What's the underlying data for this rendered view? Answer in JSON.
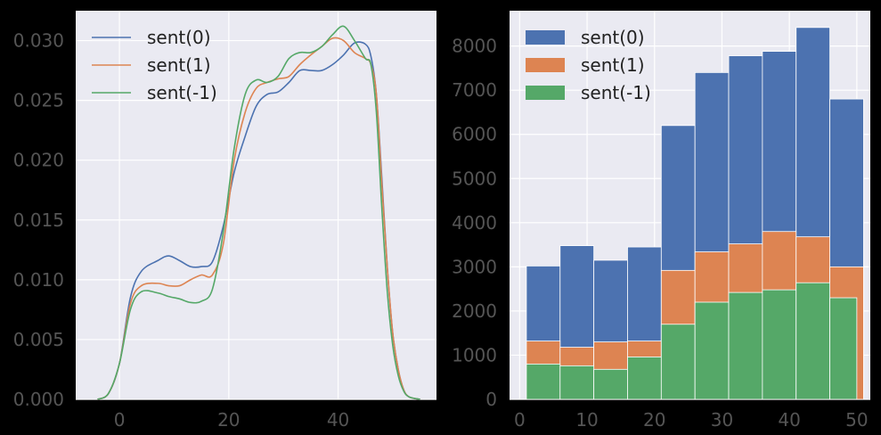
{
  "chart_data": [
    {
      "type": "line",
      "chart": "kde",
      "xlim": [
        -8,
        58
      ],
      "ylim": [
        0,
        0.0325
      ],
      "xticks": [
        0,
        20,
        40
      ],
      "yticks": [
        0.0,
        0.005,
        0.01,
        0.015,
        0.02,
        0.025,
        0.03
      ],
      "ytick_labels": [
        "0.000",
        "0.005",
        "0.010",
        "0.015",
        "0.020",
        "0.025",
        "0.030"
      ],
      "grid": true,
      "legend_position": "top-left",
      "series": [
        {
          "name": "sent(0)",
          "color": "#4c72b0",
          "x": [
            -4,
            -2,
            0,
            2,
            4,
            7,
            9,
            11,
            13,
            15,
            17,
            19,
            21,
            23,
            25,
            27,
            29,
            31,
            33,
            35,
            37,
            39,
            41,
            43,
            45,
            46,
            47,
            48,
            49,
            50,
            51,
            52,
            53,
            55
          ],
          "y": [
            0.0,
            0.0005,
            0.003,
            0.0085,
            0.0107,
            0.0116,
            0.012,
            0.0116,
            0.0111,
            0.0111,
            0.0115,
            0.0145,
            0.019,
            0.022,
            0.0245,
            0.0255,
            0.0257,
            0.0265,
            0.0275,
            0.0275,
            0.0275,
            0.028,
            0.0288,
            0.0298,
            0.0297,
            0.0287,
            0.0255,
            0.0185,
            0.011,
            0.0055,
            0.0025,
            0.0008,
            0.0002,
            0.0
          ]
        },
        {
          "name": "sent(1)",
          "color": "#dd8452",
          "x": [
            -4,
            -2,
            0,
            2,
            4,
            7,
            9,
            11,
            13,
            15,
            17,
            19,
            21,
            23,
            25,
            27,
            29,
            31,
            33,
            35,
            37,
            39,
            41,
            43,
            45,
            46,
            47,
            48,
            49,
            50,
            51,
            52,
            53,
            55
          ],
          "y": [
            0.0,
            0.0005,
            0.003,
            0.008,
            0.0095,
            0.0097,
            0.0095,
            0.0095,
            0.01,
            0.0104,
            0.0104,
            0.013,
            0.02,
            0.024,
            0.026,
            0.0265,
            0.0268,
            0.027,
            0.028,
            0.0288,
            0.0295,
            0.0302,
            0.03,
            0.029,
            0.0285,
            0.028,
            0.0255,
            0.018,
            0.011,
            0.0055,
            0.0025,
            0.0008,
            0.0002,
            0.0
          ]
        },
        {
          "name": "sent(-1)",
          "color": "#55a868",
          "x": [
            -4,
            -2,
            0,
            2,
            4,
            7,
            9,
            11,
            13,
            15,
            17,
            19,
            21,
            23,
            25,
            27,
            29,
            31,
            33,
            35,
            37,
            39,
            41,
            43,
            45,
            46,
            47,
            48,
            49,
            50,
            51,
            52,
            53,
            55
          ],
          "y": [
            0.0,
            0.0005,
            0.003,
            0.0075,
            0.009,
            0.0089,
            0.0086,
            0.0084,
            0.0081,
            0.0082,
            0.0092,
            0.014,
            0.021,
            0.0255,
            0.0267,
            0.0265,
            0.027,
            0.0285,
            0.029,
            0.029,
            0.0295,
            0.0305,
            0.0312,
            0.03,
            0.0285,
            0.028,
            0.024,
            0.016,
            0.009,
            0.0045,
            0.002,
            0.0007,
            0.0002,
            0.0
          ]
        }
      ]
    },
    {
      "type": "bar",
      "chart": "histogram",
      "stacked": false,
      "xlim": [
        -1.5,
        52
      ],
      "ylim": [
        0,
        8800
      ],
      "xticks": [
        0,
        10,
        20,
        30,
        40,
        50
      ],
      "yticks": [
        0,
        1000,
        2000,
        3000,
        4000,
        5000,
        6000,
        7000,
        8000
      ],
      "grid": true,
      "legend_position": "top-left",
      "series": [
        {
          "name": "sent(0)",
          "color": "#4c72b0",
          "bin_edges": [
            1,
            6,
            11,
            16,
            21,
            26,
            31,
            36,
            41,
            46,
            51
          ],
          "values": [
            3020,
            3480,
            3150,
            3450,
            6200,
            7400,
            7780,
            7880,
            8420,
            6800
          ]
        },
        {
          "name": "sent(1)",
          "color": "#dd8452",
          "bin_edges": [
            1,
            6,
            11,
            16,
            21,
            26,
            31,
            36,
            41,
            46,
            51
          ],
          "values": [
            1320,
            1180,
            1300,
            1320,
            2920,
            3340,
            3520,
            3800,
            3680,
            3000
          ]
        },
        {
          "name": "sent(-1)",
          "color": "#55a868",
          "bin_edges": [
            1,
            6,
            11,
            16,
            21,
            26,
            31,
            36,
            41,
            46,
            50
          ],
          "values": [
            800,
            760,
            680,
            960,
            1700,
            2200,
            2420,
            2480,
            2640,
            2300
          ]
        }
      ]
    }
  ]
}
